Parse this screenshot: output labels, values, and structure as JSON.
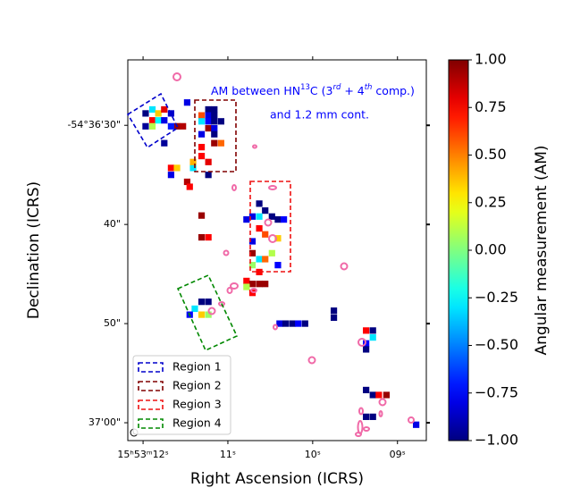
{
  "chart_data": {
    "type": "heatmap",
    "xlabel": "Right Ascension (ICRS)",
    "ylabel": "Declination (ICRS)",
    "xlim": [
      12.18,
      8.66
    ],
    "ylim": [
      23.4,
      61.8
    ],
    "xticks": [
      {
        "value": 12,
        "label": "15ʰ53ᵐ12ˢ"
      },
      {
        "value": 11,
        "label": "11ˢ"
      },
      {
        "value": 10,
        "label": "10ˢ"
      },
      {
        "value": 9,
        "label": "09ˢ"
      }
    ],
    "yticks": [
      {
        "value": 30,
        "label": "-54°36'30\""
      },
      {
        "value": 40,
        "label": "40\""
      },
      {
        "value": 50,
        "label": "50\""
      },
      {
        "value": 60,
        "label": "37'00\""
      }
    ],
    "annotation": [
      "AM between HN",
      "13",
      "C (3",
      "rd",
      " + 4",
      "th",
      " comp.)"
    ],
    "annotation2": "and 1.2 mm cont.",
    "colorbar_label": "Angular measurement (AM)",
    "colormap": "jet",
    "clim": [
      -1,
      1
    ],
    "cticks": [
      {
        "value": 1,
        "label": "1.00"
      },
      {
        "value": 0.75,
        "label": "0.75"
      },
      {
        "value": 0.5,
        "label": "0.50"
      },
      {
        "value": 0.25,
        "label": "0.25"
      },
      {
        "value": 0,
        "label": "0.00"
      },
      {
        "value": -0.25,
        "label": "−0.25"
      },
      {
        "value": -0.5,
        "label": "−0.50"
      },
      {
        "value": -0.75,
        "label": "−0.75"
      },
      {
        "value": -1,
        "label": "−1.00"
      }
    ],
    "legend_position": "lower left",
    "regions": [
      {
        "name": "Region 1",
        "color": "#0000cc"
      },
      {
        "name": "Region 2",
        "color": "#800000"
      },
      {
        "name": "Region 3",
        "color": "#ee1111"
      },
      {
        "name": "Region 4",
        "color": "#008800"
      }
    ],
    "pixels": {
      "x": [
        11.97,
        11.89,
        11.82,
        11.75,
        11.89,
        11.82,
        11.97,
        11.89,
        11.75,
        11.67,
        11.6,
        11.53,
        11.75,
        11.67,
        11.23,
        11.16,
        11.31,
        11.23,
        11.16,
        11.31,
        11.23,
        11.16,
        11.08,
        11.23,
        11.16,
        11.31,
        11.16,
        11.31,
        11.16,
        11.08,
        11.31,
        11.23,
        11.23,
        11.48,
        11.67,
        11.6,
        11.67,
        11.48,
        11.45,
        11.41,
        11.41,
        11.31,
        11.31,
        11.23,
        10.63,
        10.56,
        10.71,
        10.63,
        10.78,
        10.48,
        10.41,
        10.34,
        10.63,
        10.56,
        10.71,
        10.41,
        10.71,
        10.63,
        10.56,
        10.48,
        10.41,
        10.71,
        10.63,
        10.78,
        10.71,
        10.63,
        10.56,
        10.78,
        10.71,
        11.31,
        11.23,
        11.39,
        11.31,
        11.23,
        11.45,
        10.39,
        10.32,
        10.24,
        10.17,
        10.09,
        9.75,
        9.75,
        9.37,
        9.29,
        9.29,
        9.37,
        9.37,
        9.37,
        9.29,
        9.22,
        9.13,
        9.37,
        9.29,
        8.78
      ],
      "y": [
        28.8,
        28.4,
        28.8,
        28.4,
        29.5,
        29.5,
        30.1,
        30.1,
        29.5,
        28.8,
        30.1,
        30.1,
        31.8,
        30.1,
        28.4,
        28.4,
        29.0,
        29.0,
        29.0,
        29.6,
        29.6,
        29.6,
        29.6,
        30.3,
        30.3,
        30.9,
        30.9,
        32.2,
        31.8,
        31.8,
        33.1,
        33.7,
        35.0,
        27.7,
        34.3,
        34.3,
        35.0,
        35.7,
        36.2,
        34.3,
        33.7,
        39.1,
        41.3,
        41.3,
        37.9,
        38.6,
        39.2,
        39.2,
        39.5,
        39.2,
        39.5,
        39.5,
        40.4,
        41.0,
        41.7,
        41.4,
        42.9,
        43.5,
        43.5,
        42.9,
        44.1,
        44.1,
        44.8,
        45.7,
        46.0,
        46.0,
        46.0,
        46.3,
        46.9,
        47.8,
        47.8,
        48.5,
        49.1,
        49.1,
        49.1,
        50.0,
        50.0,
        50.0,
        50.0,
        50.0,
        48.7,
        49.4,
        50.7,
        50.7,
        51.4,
        52.0,
        52.6,
        56.7,
        57.2,
        57.2,
        57.2,
        59.4,
        59.4,
        60.2
      ],
      "values": [
        -1,
        -0.3,
        0.35,
        0.8,
        0.75,
        -0.25,
        -0.95,
        0.1,
        -0.8,
        -0.85,
        0.95,
        0.9,
        -0.95,
        -0.7,
        -1,
        -1,
        0.6,
        -0.8,
        -1,
        -0.3,
        -0.75,
        -1,
        -1,
        0.95,
        -0.8,
        -0.8,
        -1,
        0.75,
        0.95,
        0.55,
        0.75,
        0.8,
        -1,
        -0.8,
        0.75,
        0.35,
        -0.8,
        0.9,
        0.75,
        -0.3,
        0.4,
        0.95,
        0.95,
        0.75,
        -1,
        -1,
        -0.8,
        -0.3,
        -0.8,
        -1,
        -1,
        -0.75,
        0.75,
        0.6,
        -0.8,
        0.35,
        0.95,
        -0.3,
        0.55,
        0.1,
        -0.75,
        0.05,
        0.75,
        0.75,
        0.95,
        0.95,
        0.95,
        0.1,
        0.75,
        -1,
        -1,
        -0.3,
        0.35,
        0.05,
        -0.75,
        -0.8,
        -1,
        -1,
        -0.75,
        -1,
        -1,
        -1,
        0.75,
        -1,
        -0.3,
        -0.75,
        -1,
        -1,
        -1,
        0.75,
        0.95,
        -1,
        -1,
        -0.8
      ]
    }
  }
}
